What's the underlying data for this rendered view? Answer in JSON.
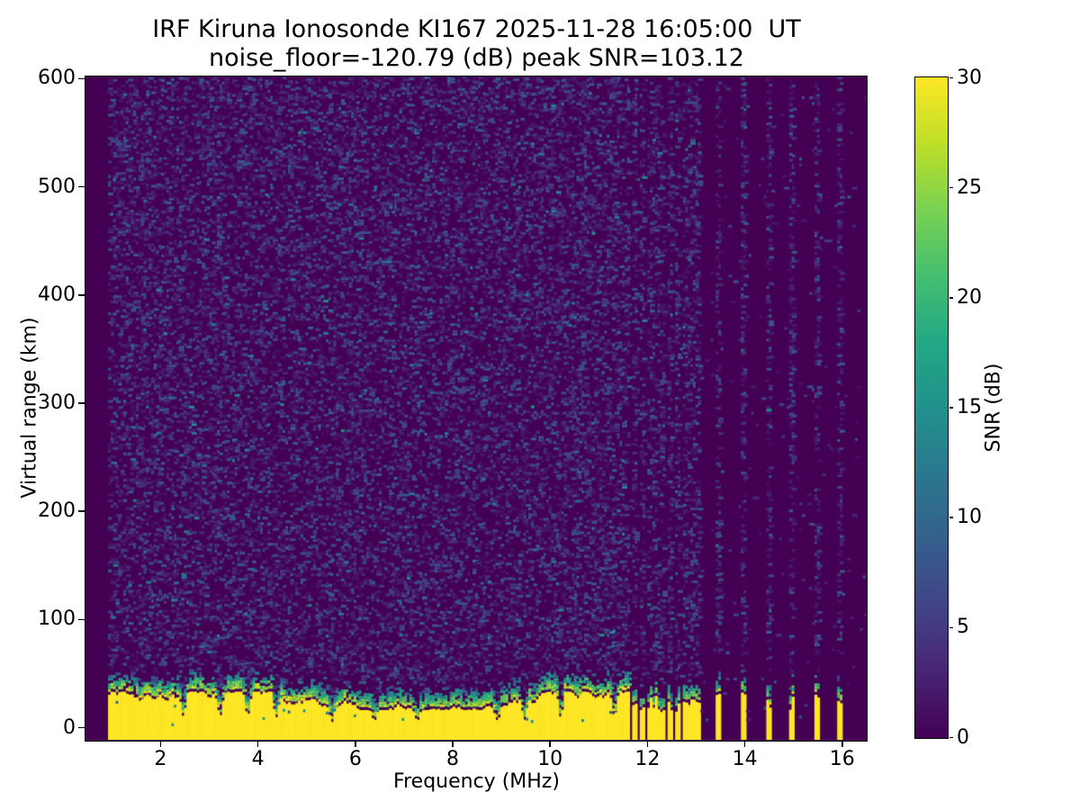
{
  "title": {
    "line1": "IRF Kiruna Ionosonde KI167 2025-11-28 16:05:00  UT",
    "line2": "noise_floor=-120.79 (dB) peak SNR=103.12"
  },
  "station": "IRF Kiruna Ionosonde KI167",
  "timestamp_ut": "2025-11-28 16:05:00 UT",
  "noise_floor_db": -120.79,
  "peak_snr_db": 103.12,
  "chart_data": {
    "type": "heatmap",
    "title": "IRF Kiruna Ionosonde KI167 2025-11-28 16:05:00  UT\nnoise_floor=-120.79 (dB) peak SNR=103.12",
    "xlabel": "Frequency (MHz)",
    "ylabel": "Virtual range (km)",
    "colorbar_label": "SNR (dB)",
    "xlim": [
      0.467,
      16.494
    ],
    "ylim": [
      -11.5,
      601.5
    ],
    "clim": [
      0,
      30
    ],
    "x_ticks": [
      2,
      4,
      6,
      8,
      10,
      12,
      14,
      16
    ],
    "y_ticks": [
      0,
      100,
      200,
      300,
      400,
      500,
      600
    ],
    "colorbar_ticks": [
      0,
      5,
      10,
      15,
      20,
      25,
      30
    ],
    "colormap": "viridis",
    "grid": false,
    "legend": "colorbar-right",
    "viridis_stops": [
      [
        0.0,
        "#440154"
      ],
      [
        0.1,
        "#482475"
      ],
      [
        0.2,
        "#414487"
      ],
      [
        0.3,
        "#355f8d"
      ],
      [
        0.4,
        "#2a788e"
      ],
      [
        0.5,
        "#21918c"
      ],
      [
        0.6,
        "#22a884"
      ],
      [
        0.7,
        "#44bf70"
      ],
      [
        0.8,
        "#7ad151"
      ],
      [
        0.9,
        "#bddf26"
      ],
      [
        1.0,
        "#fde725"
      ]
    ],
    "regions": [
      {
        "name": "no-data-left-margin",
        "freq_mhz": [
          0.467,
          0.93
        ],
        "snr_db": 0
      },
      {
        "name": "background-noise-speckle",
        "freq_mhz": [
          0.93,
          11.64
        ],
        "range_km": [
          55,
          600
        ],
        "snr_db": "0-12 random speckle"
      },
      {
        "name": "ground-clutter-band-saturated",
        "freq_mhz": [
          0.93,
          11.64
        ],
        "range_km": [
          -11.5,
          32
        ],
        "snr_db": 30
      },
      {
        "name": "band-transition-teal",
        "freq_mhz": [
          0.93,
          11.64
        ],
        "range_km": [
          20,
          50
        ],
        "snr_db": "8-28"
      },
      {
        "name": "dense-interference-stripes",
        "freqs_mhz": [
          11.72,
          11.87,
          12.01,
          12.16,
          12.3,
          12.45,
          12.6,
          12.74,
          12.89,
          13.03
        ],
        "range_km": [
          -11.5,
          35
        ],
        "snr_db": 30
      },
      {
        "name": "sparse-interference-stripes",
        "freqs_mhz": [
          13.45,
          13.96,
          14.46,
          14.95,
          15.45,
          15.95
        ],
        "range_km": [
          -11.5,
          45
        ],
        "snr_db": 30
      },
      {
        "name": "faint-echo-trace",
        "freq_mhz": [
          2.0,
          2.6
        ],
        "range_km": [
          110,
          122
        ],
        "snr_db": "6-14"
      }
    ],
    "band_notch_freqs_mhz": [
      2.45,
      3.2,
      3.77,
      4.35,
      5.5,
      6.37,
      7.25,
      8.9,
      9.45,
      10.2,
      11.3
    ],
    "render": {
      "seed": 11,
      "freq_step_mhz": 0.052,
      "range_step_km": 2.7,
      "data_start_mhz": 0.93,
      "band_end_mhz": 11.64,
      "speckle_density_band": 0.34,
      "speckle_density_stripe": 0.33,
      "speckle_density_quiet": 0.013,
      "band_top_km_min": 16,
      "band_top_km_max": 33
    }
  },
  "colors": {
    "background": "#ffffff",
    "axis": "#000000",
    "heatmap_floor": "#440154",
    "heatmap_peak": "#fde725"
  }
}
